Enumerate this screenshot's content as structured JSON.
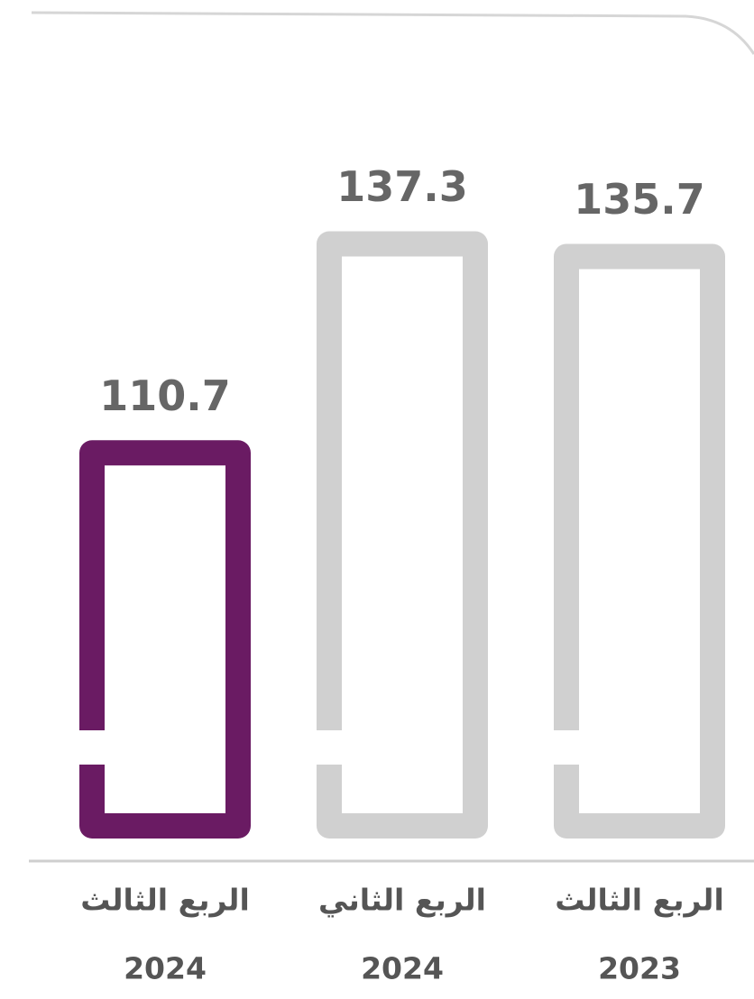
{
  "chart_data": {
    "type": "bar",
    "categories": [
      [
        "الربع الثالث",
        "2024"
      ],
      [
        "الربع الثاني",
        "2024"
      ],
      [
        "الربع الثالث",
        "2023"
      ]
    ],
    "values": [
      110.7,
      137.3,
      135.7
    ],
    "colors": [
      "#6a1b63",
      "#d0d0d0",
      "#d0d0d0"
    ],
    "ylim": [
      60,
      140
    ]
  }
}
